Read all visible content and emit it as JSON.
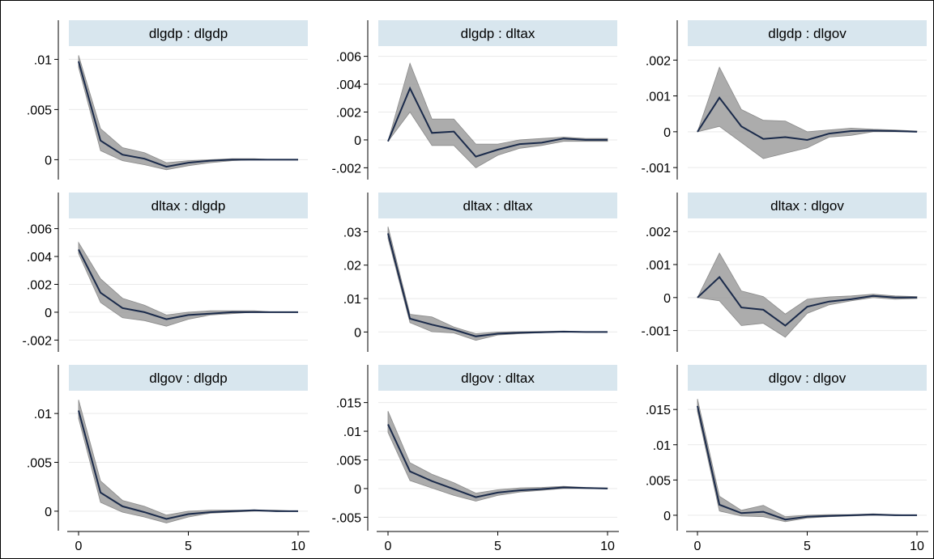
{
  "chart_data": {
    "type": "line",
    "layout": "3x3 grid",
    "colors": {
      "line": "#1a2a4a",
      "band": "#9e9e9e",
      "title_band": "#d8e6ee",
      "grid": "#e9e9e9"
    },
    "x": [
      0,
      1,
      2,
      3,
      4,
      5,
      6,
      7,
      8,
      9,
      10
    ],
    "xticks": [
      0,
      5,
      10
    ],
    "xtick_labels": [
      "0",
      "5",
      "10"
    ],
    "panels": [
      {
        "title": "dlgdp : dlgdp",
        "ylim": [
          -0.0015,
          0.011
        ],
        "yticks": [
          0,
          0.005,
          0.01
        ],
        "ytick_labels": [
          "0",
          ".005",
          ".01"
        ],
        "values": [
          0.0098,
          0.0019,
          0.0005,
          0.0001,
          -0.0007,
          -0.0003,
          -0.0001,
          0.0,
          0.0,
          0.0,
          0.0
        ],
        "lower": [
          0.0092,
          0.0009,
          -0.0001,
          -0.0005,
          -0.001,
          -0.0006,
          -0.0003,
          -0.0001,
          0.0,
          0.0,
          0.0
        ],
        "upper": [
          0.0104,
          0.0031,
          0.0012,
          0.0007,
          -0.0003,
          -0.0001,
          0.0,
          0.0001,
          0.0001,
          0.0,
          0.0
        ]
      },
      {
        "title": "dlgdp : dltax",
        "ylim": [
          -0.0025,
          0.0065
        ],
        "yticks": [
          -0.002,
          0,
          0.002,
          0.004,
          0.006
        ],
        "ytick_labels": [
          "-.002",
          "0",
          ".002",
          ".004",
          ".006"
        ],
        "values": [
          -0.0001,
          0.0037,
          0.0005,
          0.0006,
          -0.0012,
          -0.0007,
          -0.0003,
          -0.0002,
          0.0001,
          0.0,
          0.0
        ],
        "lower": [
          -0.0001,
          0.002,
          -0.0004,
          -0.0004,
          -0.002,
          -0.0011,
          -0.0006,
          -0.0004,
          -0.0001,
          -0.0001,
          -0.0001
        ],
        "upper": [
          -0.0001,
          0.0055,
          0.0015,
          0.0015,
          -0.0003,
          -0.0003,
          0.0,
          0.0001,
          0.0002,
          0.0001,
          0.0001
        ]
      },
      {
        "title": "dlgdp : dlgov",
        "ylim": [
          -0.0012,
          0.0023
        ],
        "yticks": [
          -0.001,
          0,
          0.001,
          0.002
        ],
        "ytick_labels": [
          "-.001",
          "0",
          ".001",
          ".002"
        ],
        "values": [
          0.0,
          0.00095,
          0.00015,
          -0.0002,
          -0.00015,
          -0.00023,
          -5e-05,
          2e-05,
          3e-05,
          2e-05,
          0.0
        ],
        "lower": [
          0.0,
          0.00015,
          -0.0003,
          -0.00075,
          -0.0006,
          -0.00045,
          -0.00015,
          -0.0001,
          0.0,
          0.0,
          0.0
        ],
        "upper": [
          0.0,
          0.0018,
          0.00062,
          0.00032,
          0.0003,
          0.0,
          5e-05,
          0.0001,
          7e-05,
          5e-05,
          2e-05
        ]
      },
      {
        "title": "dltax : dlgdp",
        "ylim": [
          -0.0025,
          0.0065
        ],
        "yticks": [
          -0.002,
          0,
          0.002,
          0.004,
          0.006
        ],
        "ytick_labels": [
          "-.002",
          "0",
          ".002",
          ".004",
          ".006"
        ],
        "values": [
          0.0045,
          0.0014,
          0.0003,
          0.0,
          -0.0005,
          -0.0002,
          -0.0001,
          0.0,
          0.0,
          0.0,
          0.0
        ],
        "lower": [
          0.0042,
          0.0007,
          -0.0004,
          -0.0006,
          -0.001,
          -0.0005,
          -0.0002,
          -0.0001,
          0.0,
          0.0,
          0.0
        ],
        "upper": [
          0.005,
          0.0024,
          0.001,
          0.0005,
          -0.0002,
          0.0,
          0.0001,
          0.0001,
          0.0001,
          0.0,
          0.0
        ]
      },
      {
        "title": "dltax : dltax",
        "ylim": [
          -0.0045,
          0.033
        ],
        "yticks": [
          0,
          0.01,
          0.02,
          0.03
        ],
        "ytick_labels": [
          "0",
          ".01",
          ".02",
          ".03"
        ],
        "values": [
          0.0295,
          0.004,
          0.0022,
          0.0007,
          -0.0013,
          -0.0005,
          -0.0002,
          -0.0001,
          0.0001,
          0.0,
          0.0
        ],
        "lower": [
          0.028,
          0.0028,
          0.0001,
          -0.0003,
          -0.0025,
          -0.0009,
          -0.0005,
          -0.0002,
          0.0,
          0.0,
          0.0
        ],
        "upper": [
          0.0315,
          0.0053,
          0.0045,
          0.0015,
          -0.0005,
          0.0,
          0.0001,
          0.0002,
          0.0003,
          0.0001,
          0.0
        ]
      },
      {
        "title": "dltax : dlgov",
        "ylim": [
          -0.0015,
          0.0023
        ],
        "yticks": [
          -0.001,
          0,
          0.001,
          0.002
        ],
        "ytick_labels": [
          "-.001",
          "0",
          ".001",
          ".002"
        ],
        "values": [
          0.0,
          0.00062,
          -0.0003,
          -0.00037,
          -0.00085,
          -0.00028,
          -0.00012,
          -5e-05,
          5e-05,
          0.0,
          0.0
        ],
        "lower": [
          0.0,
          -0.0001,
          -0.00085,
          -0.00078,
          -0.0012,
          -0.00048,
          -0.00022,
          -0.0001,
          0.0,
          -5e-05,
          -3e-05
        ],
        "upper": [
          0.0,
          0.00135,
          0.0002,
          3e-05,
          -0.0005,
          -5e-05,
          2e-05,
          5e-05,
          0.0001,
          5e-05,
          3e-05
        ]
      },
      {
        "title": "dlgov : dlgdp",
        "ylim": [
          -0.0015,
          0.012
        ],
        "yticks": [
          0,
          0.005,
          0.01
        ],
        "ytick_labels": [
          "0",
          ".005",
          ".01"
        ],
        "values": [
          0.0103,
          0.0019,
          0.0005,
          -0.0001,
          -0.0008,
          -0.0003,
          -0.0001,
          0.0,
          0.0001,
          0.0,
          0.0
        ],
        "lower": [
          0.0095,
          0.0009,
          -0.0001,
          -0.0006,
          -0.0012,
          -0.0006,
          -0.0002,
          -0.0001,
          0.0,
          0.0,
          0.0
        ],
        "upper": [
          0.0114,
          0.0031,
          0.0011,
          0.0005,
          -0.0004,
          0.0,
          0.0001,
          0.0001,
          0.0001,
          0.0001,
          0.0
        ]
      },
      {
        "title": "dlgov : dltax",
        "ylim": [
          -0.0065,
          0.0165
        ],
        "yticks": [
          -0.005,
          0,
          0.005,
          0.01,
          0.015
        ],
        "ytick_labels": [
          "-.005",
          "0",
          ".005",
          ".01",
          ".015"
        ],
        "values": [
          0.0112,
          0.003,
          0.0013,
          -0.0001,
          -0.0015,
          -0.0007,
          -0.0003,
          -0.0001,
          0.0002,
          0.0001,
          0.0
        ],
        "lower": [
          0.0098,
          0.0014,
          0.0001,
          -0.0012,
          -0.0022,
          -0.0012,
          -0.0006,
          -0.0003,
          0.0,
          0.0,
          0.0
        ],
        "upper": [
          0.0135,
          0.0045,
          0.0025,
          0.001,
          -0.0008,
          -0.0002,
          0.0001,
          0.0002,
          0.0004,
          0.0002,
          0.0001
        ]
      },
      {
        "title": "dlgov : dlgov",
        "ylim": [
          -0.0015,
          0.0172
        ],
        "yticks": [
          0,
          0.005,
          0.01,
          0.015
        ],
        "ytick_labels": [
          "0",
          ".005",
          ".01",
          ".015"
        ],
        "values": [
          0.0155,
          0.0015,
          0.0003,
          0.0005,
          -0.0006,
          -0.0002,
          -0.0001,
          0.0,
          0.0001,
          0.0,
          0.0
        ],
        "lower": [
          0.0147,
          0.0006,
          -0.0001,
          -0.0002,
          -0.0009,
          -0.0004,
          -0.0002,
          -0.0001,
          0.0,
          0.0,
          0.0
        ],
        "upper": [
          0.0165,
          0.0027,
          0.0007,
          0.0014,
          -0.0002,
          0.0,
          0.0001,
          0.0001,
          0.0002,
          0.0001,
          0.0
        ]
      }
    ]
  }
}
